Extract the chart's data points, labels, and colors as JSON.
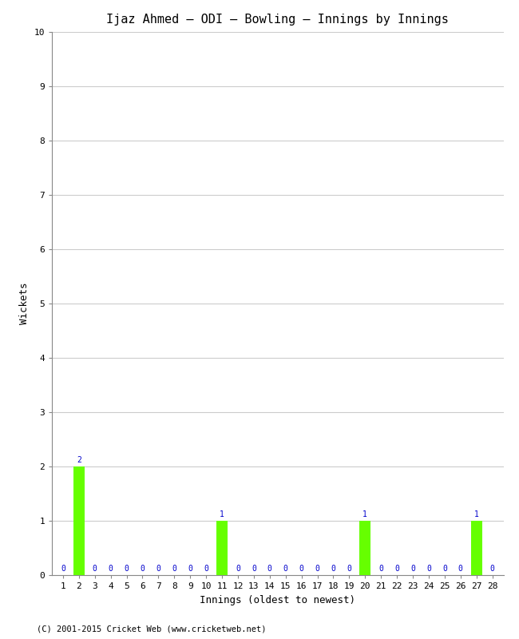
{
  "title": "Ijaz Ahmed – ODI – Bowling – Innings by Innings",
  "xlabel": "Innings (oldest to newest)",
  "ylabel": "Wickets",
  "innings": [
    1,
    2,
    3,
    4,
    5,
    6,
    7,
    8,
    9,
    10,
    11,
    12,
    13,
    14,
    15,
    16,
    17,
    18,
    19,
    20,
    21,
    22,
    23,
    24,
    25,
    26,
    27,
    28
  ],
  "wickets": [
    0,
    2,
    0,
    0,
    0,
    0,
    0,
    0,
    0,
    0,
    1,
    0,
    0,
    0,
    0,
    0,
    0,
    0,
    0,
    1,
    0,
    0,
    0,
    0,
    0,
    0,
    1,
    0
  ],
  "bar_color": "#66ff00",
  "label_color": "#0000cc",
  "background_color": "#ffffff",
  "grid_color": "#cccccc",
  "ylim": [
    0,
    10
  ],
  "yticks": [
    0,
    1,
    2,
    3,
    4,
    5,
    6,
    7,
    8,
    9,
    10
  ],
  "title_fontsize": 11,
  "axis_label_fontsize": 9,
  "tick_fontsize": 8,
  "bar_label_fontsize": 7,
  "footer": "(C) 2001-2015 Cricket Web (www.cricketweb.net)"
}
